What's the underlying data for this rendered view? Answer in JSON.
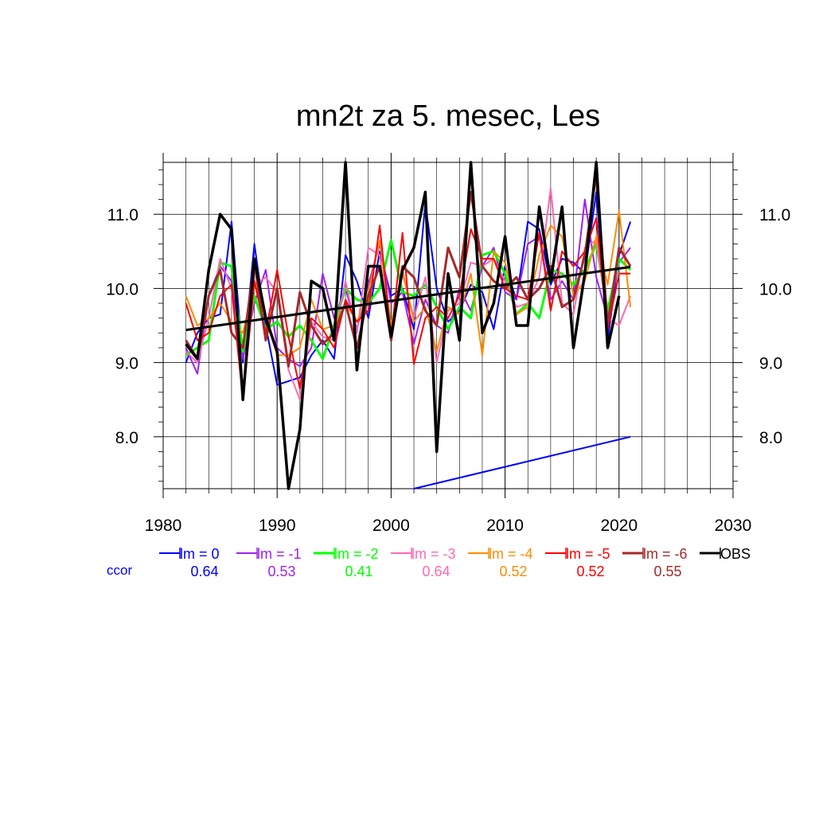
{
  "chart_data": {
    "type": "line",
    "title": "mn2t za 5. mesec, Les",
    "xlim": [
      1980,
      2030
    ],
    "ylim": [
      7.3,
      11.7
    ],
    "x_ticks": [
      1980,
      1990,
      2000,
      2010,
      2020,
      2030
    ],
    "x_tick_labels": [
      "1980",
      "1990",
      "2000",
      "2010",
      "2020",
      "2030"
    ],
    "y_ticks": [
      8.0,
      9.0,
      10.0,
      11.0
    ],
    "y_tick_labels": [
      "8.0",
      "9.0",
      "10.0",
      "11.0"
    ],
    "grid": true,
    "legend_position": "bottom",
    "ccor_label": "ccor",
    "ccor_color": "#0000ff",
    "years": [
      1982,
      1983,
      1984,
      1985,
      1986,
      1987,
      1988,
      1989,
      1990,
      1991,
      1992,
      1993,
      1994,
      1995,
      1996,
      1997,
      1998,
      1999,
      2000,
      2001,
      2002,
      2003,
      2004,
      2005,
      2006,
      2007,
      2008,
      2009,
      2010,
      2011,
      2012,
      2013,
      2014,
      2015,
      2016,
      2017,
      2018,
      2019,
      2020,
      2021
    ],
    "series": [
      {
        "name": "lm = 0",
        "color": "#0000ff",
        "width": 2,
        "ccor": "0.64",
        "values": [
          9.0,
          9.4,
          9.6,
          9.65,
          10.9,
          9.0,
          10.6,
          9.5,
          8.7,
          8.75,
          8.8,
          9.1,
          9.3,
          9.05,
          10.45,
          10.1,
          9.6,
          10.5,
          9.9,
          10.0,
          9.45,
          11.15,
          10.0,
          9.55,
          9.7,
          10.05,
          9.95,
          9.45,
          10.3,
          9.85,
          10.9,
          10.8,
          10.05,
          10.4,
          10.35,
          10.2,
          11.3,
          9.3,
          10.45,
          10.9
        ]
      },
      {
        "name": "lm = -1",
        "color": "#a020f0",
        "width": 2,
        "ccor": "0.53",
        "values": [
          9.2,
          8.85,
          9.9,
          10.3,
          10.1,
          9.05,
          9.8,
          10.25,
          9.2,
          9.05,
          8.95,
          9.2,
          10.2,
          9.6,
          10.0,
          9.45,
          10.05,
          10.6,
          9.8,
          9.95,
          9.25,
          9.85,
          9.5,
          9.4,
          10.0,
          9.7,
          10.3,
          10.55,
          9.95,
          9.85,
          10.6,
          10.7,
          9.85,
          10.1,
          9.85,
          11.2,
          10.15,
          9.6,
          10.35,
          10.55
        ]
      },
      {
        "name": "lm = -2",
        "color": "#00ff00",
        "width": 3,
        "ccor": "0.41",
        "values": [
          9.1,
          9.2,
          9.3,
          10.35,
          10.3,
          9.15,
          9.9,
          9.45,
          9.55,
          9.35,
          9.5,
          9.3,
          9.05,
          9.5,
          10.0,
          9.85,
          9.8,
          10.0,
          10.65,
          9.95,
          9.9,
          10.05,
          9.75,
          9.45,
          9.75,
          9.6,
          10.45,
          10.5,
          10.2,
          9.65,
          9.8,
          9.6,
          10.25,
          10.2,
          10.05,
          10.25,
          10.6,
          9.7,
          10.4,
          10.25
        ]
      },
      {
        "name": "lm = -3",
        "color": "#ff69b4",
        "width": 2,
        "ccor": "0.64",
        "values": [
          9.15,
          9.0,
          9.6,
          10.4,
          10.0,
          8.5,
          10.05,
          10.15,
          9.95,
          8.9,
          8.5,
          9.55,
          9.35,
          9.3,
          10.1,
          9.4,
          10.55,
          10.45,
          9.35,
          10.2,
          9.6,
          10.15,
          9.0,
          9.7,
          9.8,
          10.35,
          10.3,
          10.4,
          10.1,
          9.75,
          9.8,
          10.15,
          11.35,
          9.8,
          9.65,
          10.55,
          10.65,
          9.6,
          9.5,
          9.9
        ]
      },
      {
        "name": "lm = -4",
        "color": "#ff8c00",
        "width": 2,
        "ccor": "0.52",
        "values": [
          9.9,
          9.5,
          9.6,
          9.8,
          9.55,
          9.4,
          10.05,
          9.6,
          9.1,
          9.1,
          9.2,
          9.85,
          9.45,
          9.5,
          9.8,
          9.55,
          9.95,
          10.65,
          9.5,
          10.25,
          9.55,
          9.75,
          9.15,
          9.75,
          9.65,
          10.2,
          9.1,
          10.5,
          10.35,
          9.65,
          9.75,
          10.45,
          10.85,
          10.7,
          9.9,
          10.1,
          10.7,
          10.05,
          11.05,
          9.75
        ]
      },
      {
        "name": "lm = -5",
        "color": "#ff0000",
        "width": 2,
        "ccor": "0.52",
        "values": [
          9.8,
          9.3,
          9.4,
          9.9,
          10.05,
          8.5,
          10.1,
          9.4,
          10.25,
          9.35,
          8.65,
          9.6,
          9.45,
          9.2,
          9.85,
          9.55,
          9.7,
          10.85,
          9.35,
          10.75,
          8.98,
          9.6,
          9.75,
          9.6,
          9.9,
          10.8,
          10.4,
          10.4,
          10.0,
          9.9,
          9.85,
          10.75,
          9.7,
          10.5,
          10.3,
          10.5,
          10.95,
          9.45,
          10.2,
          10.2
        ]
      },
      {
        "name": "lm = -6",
        "color": "#a52a2a",
        "width": 3,
        "ccor": "0.55",
        "values": [
          9.3,
          9.05,
          9.9,
          10.25,
          9.4,
          9.2,
          10.35,
          9.3,
          10.0,
          8.95,
          9.95,
          9.5,
          9.25,
          9.4,
          9.8,
          9.2,
          9.9,
          10.3,
          9.3,
          10.3,
          10.15,
          9.7,
          9.5,
          10.55,
          10.15,
          11.3,
          10.3,
          10.1,
          10.0,
          10.15,
          9.85,
          10.0,
          10.3,
          9.75,
          9.85,
          10.45,
          11.55,
          9.5,
          10.55,
          10.3
        ]
      },
      {
        "name": "OBS",
        "color": "#000000",
        "width": 3.5,
        "ccor": "",
        "values": [
          9.25,
          9.05,
          10.25,
          11.0,
          10.8,
          8.5,
          10.4,
          9.6,
          9.15,
          7.3,
          8.1,
          10.1,
          10.0,
          9.3,
          11.7,
          8.9,
          10.3,
          10.3,
          9.35,
          10.25,
          10.55,
          11.3,
          7.8,
          10.2,
          9.3,
          11.7,
          9.4,
          9.8,
          10.7,
          9.5,
          9.5,
          11.1,
          10.1,
          11.1,
          9.2,
          10.2,
          11.7,
          9.2,
          9.9,
          null
        ]
      }
    ],
    "trend": {
      "color": "#000000",
      "x": [
        1982,
        2021
      ],
      "y": [
        9.44,
        10.29
      ]
    },
    "extra_line": {
      "color": "#0000ff",
      "x": [
        2002,
        2021
      ],
      "y": [
        7.3,
        8.0
      ]
    }
  }
}
